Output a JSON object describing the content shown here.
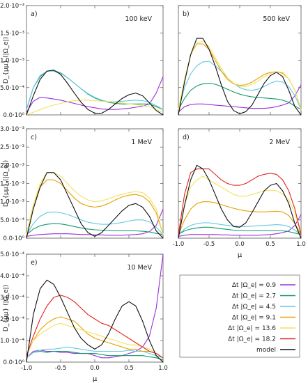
{
  "ylabel_panel": "D_{μμ} (|Ω_e|)",
  "xlabel_panel": "μ",
  "xticks": [
    "-1.0",
    "-0.5",
    "0.0",
    "0.5",
    "1.0"
  ],
  "legend": {
    "entries": [
      {
        "label": "Δt |Ω_e| = 0.9",
        "color": "#9b30d9"
      },
      {
        "label": "Δt |Ω_e| = 2.7",
        "color": "#109a6a"
      },
      {
        "label": "Δt |Ω_e| = 4.5",
        "color": "#62c8e6"
      },
      {
        "label": "Δt |Ω_e| = 9.1",
        "color": "#e8a000"
      },
      {
        "label": "Δt |Ω_e| = 13.6",
        "color": "#f2e25c"
      },
      {
        "label": "Δt |Ω_e| = 18.2",
        "color": "#e0231b"
      },
      {
        "label": "model",
        "color": "#111111"
      }
    ]
  },
  "chart_data": [
    {
      "type": "line",
      "panel": "a)",
      "energy": "100 keV",
      "xlim": [
        -1,
        1
      ],
      "ylim": [
        0,
        0.002
      ],
      "yticks": [
        "0.0·10⁰",
        "5.0·10⁻⁴",
        "1.0·10⁻³",
        "1.5·10⁻³",
        "2.0·10⁻³"
      ],
      "x": [
        -1.0,
        -0.9,
        -0.8,
        -0.7,
        -0.6,
        -0.5,
        -0.4,
        -0.3,
        -0.2,
        -0.1,
        0.0,
        0.1,
        0.2,
        0.3,
        0.4,
        0.5,
        0.6,
        0.7,
        0.8,
        0.9,
        1.0
      ],
      "series": [
        {
          "values": [
            5e-05,
            0.00025,
            0.00032,
            0.00031,
            0.00029,
            0.00027,
            0.00024,
            0.00021,
            0.00018,
            0.00015,
            0.00013,
            0.00011,
            0.0001,
            0.0001,
            0.00011,
            0.00012,
            0.00014,
            0.00016,
            0.0002,
            0.0004,
            0.0007
          ]
        },
        {
          "values": [
            0.0001,
            0.0005,
            0.0007,
            0.0008,
            0.00081,
            0.00077,
            0.00068,
            0.00058,
            0.00048,
            0.00038,
            0.00031,
            0.00026,
            0.00023,
            0.00021,
            0.0002,
            0.0002,
            0.0002,
            0.0002,
            0.0002,
            0.00015,
            0.0001
          ]
        },
        {
          "values": [
            0.0001,
            0.0005,
            0.00072,
            0.0008,
            0.0008,
            0.00076,
            0.00068,
            0.00058,
            0.00048,
            0.00039,
            0.00032,
            0.00027,
            0.00024,
            0.00024,
            0.00025,
            0.00026,
            0.00027,
            0.00026,
            0.00023,
            0.00017,
            0.0001
          ]
        },
        {
          "values": [
            0.0,
            5e-05,
            0.0001,
            0.00014,
            0.00018,
            0.00021,
            0.00024,
            0.00026,
            0.00027,
            0.00027,
            0.00026,
            0.00025,
            0.00024,
            0.00023,
            0.00022,
            0.0002,
            0.00019,
            0.00017,
            0.00015,
            0.0001,
            5e-05
          ]
        },
        {
          "values": [
            0.0,
            0.00035,
            0.00065,
            0.0008,
            0.00082,
            0.00074,
            0.00058,
            0.0004,
            0.00023,
            0.0001,
            3e-05,
            3e-05,
            0.0001,
            0.0002,
            0.0003,
            0.00037,
            0.0004,
            0.00035,
            0.00022,
            8e-05,
            0.0
          ]
        }
      ]
    },
    {
      "type": "line",
      "panel": "b)",
      "energy": "500 keV",
      "xlim": [
        -1,
        1
      ],
      "ylim": [
        0,
        0.002
      ],
      "yticks": [],
      "x": [
        -1.0,
        -0.9,
        -0.8,
        -0.7,
        -0.6,
        -0.5,
        -0.4,
        -0.3,
        -0.2,
        -0.1,
        0.0,
        0.1,
        0.2,
        0.3,
        0.4,
        0.5,
        0.6,
        0.7,
        0.8,
        0.9,
        1.0
      ],
      "series": [
        {
          "values": [
            5e-05,
            0.00015,
            0.00019,
            0.0002,
            0.0002,
            0.00019,
            0.00018,
            0.00017,
            0.00016,
            0.00015,
            0.00014,
            0.00013,
            0.00012,
            0.00012,
            0.00012,
            0.00013,
            0.00015,
            0.00018,
            0.00022,
            0.00035,
            0.00055
          ]
        },
        {
          "values": [
            0.0001,
            0.0003,
            0.00045,
            0.00053,
            0.00057,
            0.00058,
            0.00056,
            0.00052,
            0.00047,
            0.00042,
            0.00038,
            0.00035,
            0.00033,
            0.00032,
            0.00031,
            0.0003,
            0.00029,
            0.00027,
            0.00023,
            0.00016,
            0.0001
          ]
        },
        {
          "values": [
            0.0001,
            0.0005,
            0.00075,
            0.0009,
            0.00097,
            0.00098,
            0.0009,
            0.0008,
            0.00068,
            0.00058,
            0.0005,
            0.00046,
            0.00045,
            0.00047,
            0.00052,
            0.00058,
            0.00062,
            0.0006,
            0.00052,
            0.00035,
            0.0001
          ]
        },
        {
          "values": [
            0.0001,
            0.0006,
            0.0011,
            0.0013,
            0.0013,
            0.0012,
            0.001,
            0.0008,
            0.00065,
            0.00057,
            0.00054,
            0.00055,
            0.0006,
            0.00067,
            0.00074,
            0.00078,
            0.00079,
            0.00076,
            0.00066,
            0.00045,
            0.0001
          ]
        },
        {
          "values": [
            0.0001,
            0.00065,
            0.0011,
            0.00132,
            0.00135,
            0.00125,
            0.00105,
            0.00085,
            0.00068,
            0.00058,
            0.00052,
            0.00052,
            0.00056,
            0.00062,
            0.0007,
            0.00076,
            0.00079,
            0.00078,
            0.00066,
            0.00045,
            0.0001
          ]
        },
        {
          "values": [
            0.0,
            0.0006,
            0.0011,
            0.0014,
            0.0014,
            0.0012,
            0.0009,
            0.00055,
            0.00025,
            8e-05,
            2e-05,
            6e-05,
            0.00018,
            0.00038,
            0.00058,
            0.00072,
            0.00078,
            0.0007,
            0.00045,
            0.00015,
            0.0
          ]
        }
      ]
    },
    {
      "type": "line",
      "panel": "c)",
      "energy": "1 MeV",
      "xlim": [
        -1,
        1
      ],
      "ylim": [
        0,
        0.003
      ],
      "yticks": [
        "0.0·10⁰",
        "5.0·10⁻⁴",
        "1.0·10⁻³",
        "1.5·10⁻³",
        "2.0·10⁻³",
        "2.5·10⁻³",
        "3.0·10⁻³"
      ],
      "x": [
        -1.0,
        -0.9,
        -0.8,
        -0.7,
        -0.6,
        -0.5,
        -0.4,
        -0.3,
        -0.2,
        -0.1,
        0.0,
        0.1,
        0.2,
        0.3,
        0.4,
        0.5,
        0.6,
        0.7,
        0.8,
        0.9,
        1.0
      ],
      "series": [
        {
          "values": [
            5e-05,
            8e-05,
            0.0001,
            0.00011,
            0.00012,
            0.00012,
            0.00012,
            0.00011,
            0.0001,
            0.0001,
            9e-05,
            9e-05,
            8e-05,
            8e-05,
            8e-05,
            9e-05,
            0.0001,
            0.00012,
            0.00018,
            0.00035,
            0.0008
          ]
        },
        {
          "values": [
            0.0001,
            0.00025,
            0.00034,
            0.00038,
            0.0004,
            0.00039,
            0.00036,
            0.00032,
            0.00028,
            0.00025,
            0.00023,
            0.00022,
            0.00021,
            0.0002,
            0.0002,
            0.0002,
            0.0002,
            0.00019,
            0.00017,
            0.00013,
            0.0001
          ]
        },
        {
          "values": [
            0.0001,
            0.0004,
            0.0006,
            0.0007,
            0.00072,
            0.0007,
            0.00065,
            0.00058,
            0.0005,
            0.00044,
            0.0004,
            0.00038,
            0.00038,
            0.0004,
            0.00043,
            0.00047,
            0.0005,
            0.0005,
            0.00045,
            0.0003,
            0.0001
          ]
        },
        {
          "values": [
            0.0001,
            0.0009,
            0.0014,
            0.0016,
            0.0016,
            0.0015,
            0.0013,
            0.0011,
            0.00095,
            0.00088,
            0.00085,
            0.00088,
            0.00095,
            0.00105,
            0.00113,
            0.00118,
            0.0012,
            0.00115,
            0.001,
            0.0007,
            0.0001
          ]
        },
        {
          "values": [
            0.0001,
            0.0009,
            0.0015,
            0.0018,
            0.0018,
            0.0017,
            0.0015,
            0.0013,
            0.00115,
            0.00105,
            0.001,
            0.00102,
            0.00108,
            0.00115,
            0.0012,
            0.00125,
            0.00128,
            0.00125,
            0.0011,
            0.0008,
            0.0001
          ]
        },
        {
          "values": [
            0.0,
            0.0008,
            0.0014,
            0.0018,
            0.0018,
            0.0016,
            0.0012,
            0.0008,
            0.0004,
            0.00015,
            5e-05,
            0.00015,
            0.00035,
            0.00055,
            0.00075,
            0.0009,
            0.00095,
            0.00085,
            0.0006,
            0.0002,
            0.0
          ]
        }
      ]
    },
    {
      "type": "line",
      "panel": "d)",
      "energy": "2 MeV",
      "xlim": [
        -1,
        1
      ],
      "ylim": [
        0,
        0.003
      ],
      "yticks": [],
      "x": [
        -1.0,
        -0.9,
        -0.8,
        -0.7,
        -0.6,
        -0.5,
        -0.4,
        -0.3,
        -0.2,
        -0.1,
        0.0,
        0.1,
        0.2,
        0.3,
        0.4,
        0.5,
        0.6,
        0.7,
        0.8,
        0.9,
        1.0
      ],
      "series": [
        {
          "values": [
            5e-05,
            8e-05,
            0.0001,
            0.0001,
            0.0001,
            0.0001,
            0.0001,
            9e-05,
            9e-05,
            8e-05,
            8e-05,
            8e-05,
            8e-05,
            8e-05,
            9e-05,
            0.0001,
            0.00012,
            0.00015,
            0.0002,
            0.00035,
            0.00065
          ]
        },
        {
          "values": [
            0.0001,
            0.0002,
            0.00025,
            0.00028,
            0.0003,
            0.0003,
            0.00028,
            0.00026,
            0.00024,
            0.00022,
            0.00021,
            0.0002,
            0.0002,
            0.0002,
            0.0002,
            0.0002,
            0.0002,
            0.0002,
            0.00018,
            0.00014,
            0.0001
          ]
        },
        {
          "values": [
            0.0001,
            0.00025,
            0.00035,
            0.0004,
            0.00042,
            0.00042,
            0.0004,
            0.00037,
            0.00035,
            0.00033,
            0.00032,
            0.00032,
            0.00033,
            0.00034,
            0.00035,
            0.00036,
            0.00037,
            0.00036,
            0.00032,
            0.00022,
            0.0001
          ]
        },
        {
          "values": [
            0.0001,
            0.0005,
            0.0008,
            0.00095,
            0.001,
            0.001,
            0.00097,
            0.00092,
            0.00087,
            0.00082,
            0.00078,
            0.00075,
            0.00073,
            0.00072,
            0.00072,
            0.00073,
            0.00074,
            0.00072,
            0.00062,
            0.0004,
            0.0001
          ]
        },
        {
          "values": [
            0.0001,
            0.0009,
            0.0014,
            0.0016,
            0.0017,
            0.0016,
            0.0015,
            0.0014,
            0.0013,
            0.0012,
            0.00115,
            0.00115,
            0.0012,
            0.00125,
            0.0013,
            0.00132,
            0.0013,
            0.00122,
            0.00105,
            0.0007,
            0.0001
          ]
        },
        {
          "values": [
            0.0001,
            0.0012,
            0.0018,
            0.0019,
            0.0019,
            0.0019,
            0.00175,
            0.0016,
            0.0015,
            0.00145,
            0.00145,
            0.0015,
            0.0016,
            0.0017,
            0.00175,
            0.00178,
            0.00175,
            0.0016,
            0.0013,
            0.0008,
            0.0001
          ]
        },
        {
          "values": [
            0.0,
            0.0009,
            0.0016,
            0.002,
            0.0019,
            0.0016,
            0.0012,
            0.0008,
            0.0005,
            0.00032,
            0.0003,
            0.00042,
            0.0007,
            0.001,
            0.0013,
            0.00145,
            0.0015,
            0.0013,
            0.00095,
            0.0004,
            0.0
          ]
        }
      ]
    },
    {
      "type": "line",
      "panel": "e)",
      "energy": "10 MeV",
      "xlim": [
        -1,
        1
      ],
      "ylim": [
        0,
        0.0005
      ],
      "yticks": [
        "0.0·10⁰",
        "1.0·10⁻⁴",
        "2.0·10⁻⁴",
        "3.0·10⁻⁴",
        "4.0·10⁻⁴",
        "5.0·10⁻⁴"
      ],
      "x": [
        -1.0,
        -0.9,
        -0.8,
        -0.7,
        -0.6,
        -0.5,
        -0.4,
        -0.3,
        -0.2,
        -0.1,
        0.0,
        0.1,
        0.2,
        0.3,
        0.4,
        0.5,
        0.6,
        0.7,
        0.8,
        0.9,
        1.0
      ],
      "series": [
        {
          "values": [
            2e-05,
            5e-05,
            5.5e-05,
            5e-05,
            5e-05,
            4.5e-05,
            4.5e-05,
            4e-05,
            4e-05,
            4e-05,
            3e-05,
            2e-05,
            2e-05,
            2.5e-05,
            3e-05,
            4e-05,
            5e-05,
            7e-05,
            0.00012,
            0.00025,
            0.0005
          ]
        },
        {
          "values": [
            2e-05,
            4.5e-05,
            5e-05,
            4.5e-05,
            5e-05,
            5e-05,
            5e-05,
            4.5e-05,
            4e-05,
            4e-05,
            4e-05,
            3.5e-05,
            3e-05,
            3e-05,
            3e-05,
            3e-05,
            3e-05,
            3e-05,
            2.5e-05,
            2e-05,
            1e-05
          ]
        },
        {
          "values": [
            2e-05,
            4.5e-05,
            5.5e-05,
            6e-05,
            6e-05,
            6.5e-05,
            7e-05,
            6.5e-05,
            6e-05,
            5.5e-05,
            5e-05,
            5e-05,
            5e-05,
            5e-05,
            5e-05,
            5.5e-05,
            5e-05,
            5e-05,
            4e-05,
            3e-05,
            2e-05
          ]
        },
        {
          "values": [
            3e-05,
            0.0001,
            0.00015,
            0.00018,
            0.0002,
            0.00021,
            0.0002,
            0.00019,
            0.00016,
            0.00013,
            0.00011,
            0.0001,
            9e-05,
            8e-05,
            7e-05,
            6e-05,
            6e-05,
            5e-05,
            5e-05,
            4e-05,
            2e-05
          ]
        },
        {
          "values": [
            3e-05,
            0.0001,
            0.00013,
            0.00015,
            0.00017,
            0.00018,
            0.00017,
            0.00016,
            0.00015,
            0.00014,
            0.00013,
            0.00012,
            0.00011,
            0.0001,
            9e-05,
            8e-05,
            8e-05,
            7e-05,
            6e-05,
            4e-05,
            2e-05
          ]
        },
        {
          "values": [
            3e-05,
            0.00012,
            0.0002,
            0.00026,
            0.0003,
            0.00031,
            0.0003,
            0.00028,
            0.00025,
            0.00022,
            0.0002,
            0.00018,
            0.00017,
            0.00015,
            0.00013,
            0.00011,
            9e-05,
            7e-05,
            5e-05,
            4e-05,
            2e-05
          ]
        },
        {
          "values": [
            0.0,
            0.00022,
            0.00034,
            0.00038,
            0.00036,
            0.0003,
            0.00023,
            0.00016,
            0.00011,
            8e-05,
            6e-05,
            8e-05,
            0.00013,
            0.0002,
            0.00026,
            0.00028,
            0.00026,
            0.00019,
            0.0001,
            3e-05,
            0.0
          ]
        }
      ]
    }
  ]
}
